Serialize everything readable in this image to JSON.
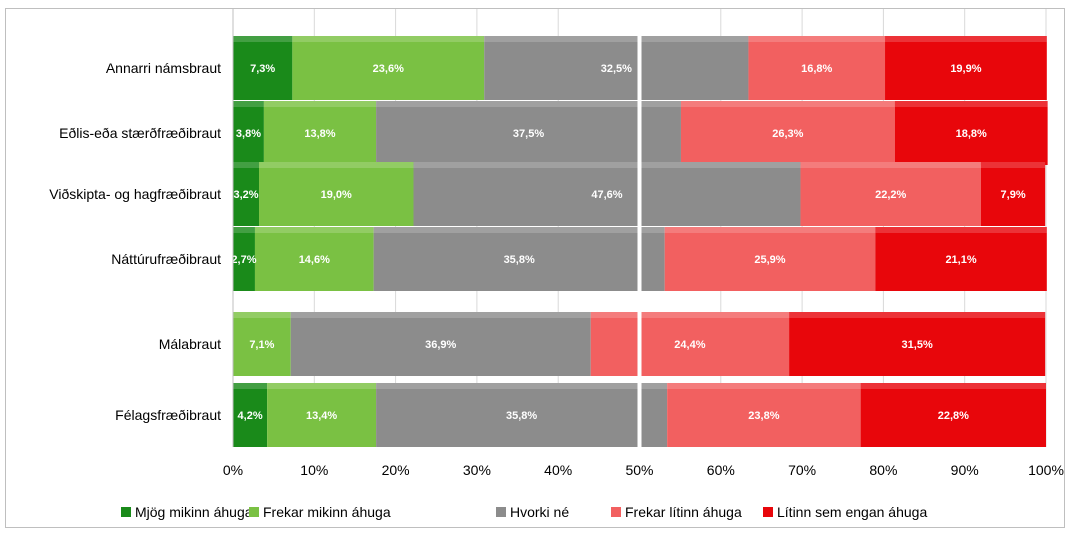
{
  "chart_data": {
    "type": "bar",
    "orientation": "horizontal",
    "stacked": "100%",
    "categories": [
      "Annarri námsbraut",
      "Eðlis-eða stærðfræðibraut",
      "Viðskipta- og hagfræðibraut",
      "Náttúrufræðibraut",
      "Málabraut",
      "Félagsfræðibraut"
    ],
    "series": [
      {
        "name": "Mjög mikinn áhuga",
        "color": "#1a8a1a",
        "values": [
          7.3,
          3.8,
          3.2,
          2.7,
          0,
          4.2
        ],
        "labels": [
          "7,3%",
          "3,8%",
          "3,2%",
          "2,7%",
          "",
          "4,2%"
        ]
      },
      {
        "name": "Frekar mikinn áhuga",
        "color": "#7ac143",
        "values": [
          23.6,
          13.8,
          19.0,
          14.6,
          7.1,
          13.4
        ],
        "labels": [
          "23,6%",
          "13,8%",
          "19,0%",
          "14,6%",
          "7,1%",
          "13,4%"
        ]
      },
      {
        "name": "Hvorki né",
        "color": "#8c8c8c",
        "values": [
          32.5,
          37.5,
          47.6,
          35.8,
          36.9,
          35.8
        ],
        "labels": [
          "32,5%",
          "37,5%",
          "47,6%",
          "35,8%",
          "36,9%",
          "35,8%"
        ]
      },
      {
        "name": "Frekar lítinn áhuga",
        "color": "#f26060",
        "values": [
          16.8,
          26.3,
          22.2,
          25.9,
          24.4,
          23.8
        ],
        "labels": [
          "16,8%",
          "26,3%",
          "22,2%",
          "25,9%",
          "24,4%",
          "23,8%"
        ]
      },
      {
        "name": "Lítinn sem engan áhuga",
        "color": "#e8060b",
        "values": [
          19.9,
          18.8,
          7.9,
          21.1,
          31.5,
          22.8
        ],
        "labels": [
          "19,9%",
          "18,8%",
          "7,9%",
          "21,1%",
          "31,5%",
          "22,8%"
        ]
      }
    ],
    "xlim": [
      0,
      100
    ],
    "xticks": [
      "0%",
      "10%",
      "20%",
      "30%",
      "40%",
      "50%",
      "60%",
      "70%",
      "80%",
      "90%",
      "100%"
    ],
    "reference_line": 50,
    "grid": "vertical",
    "legend": "bottom",
    "title": "",
    "xlabel": "",
    "ylabel": ""
  }
}
